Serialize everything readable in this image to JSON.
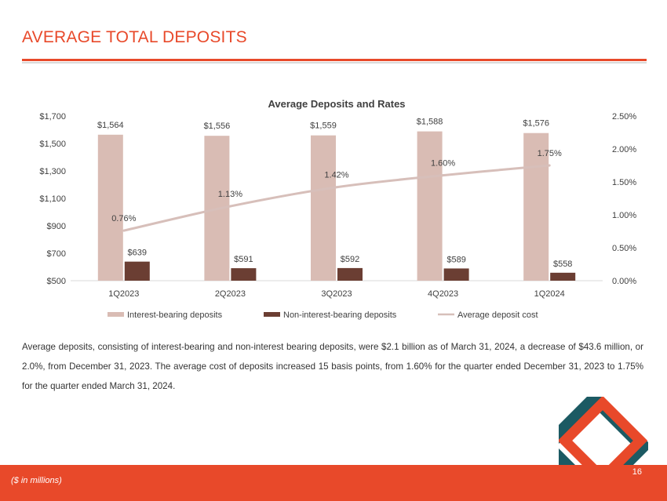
{
  "page": {
    "title": "AVERAGE TOTAL DEPOSITS",
    "body_text": "Average deposits, consisting of interest-bearing and non-interest bearing deposits, were $2.1 billion as of March 31, 2024, a decrease of $43.6 million, or 2.0%, from December 31, 2023. The average cost of deposits increased 15 basis points, from 1.60% for the quarter ended December 31, 2023 to 1.75% for the quarter ended March 31, 2024.",
    "footnote": "($ in millions)",
    "page_number": "16"
  },
  "colors": {
    "accent": "#e8492a",
    "interest_bar": "#d9bcb4",
    "noninterest_bar": "#6b3e33",
    "line": "#d7bfba",
    "logo_teal": "#1c5a63"
  },
  "chart_data": {
    "type": "bar",
    "title": "Average Deposits and Rates",
    "categories": [
      "1Q2023",
      "2Q2023",
      "3Q2023",
      "4Q2023",
      "1Q2024"
    ],
    "series": [
      {
        "name": "Interest-bearing deposits",
        "kind": "bar",
        "axis": "left",
        "values": [
          1564,
          1556,
          1559,
          1588,
          1576
        ],
        "labels": [
          "$1,564",
          "$1,556",
          "$1,559",
          "$1,588",
          "$1,576"
        ]
      },
      {
        "name": "Non-interest-bearing deposits",
        "kind": "bar",
        "axis": "left",
        "values": [
          639,
          591,
          592,
          589,
          558
        ],
        "labels": [
          "$639",
          "$591",
          "$592",
          "$589",
          "$558"
        ]
      },
      {
        "name": "Average deposit cost",
        "kind": "line",
        "axis": "right",
        "values": [
          0.76,
          1.13,
          1.42,
          1.6,
          1.75
        ],
        "labels": [
          "0.76%",
          "1.13%",
          "1.42%",
          "1.60%",
          "1.75%"
        ]
      }
    ],
    "ylim": [
      500,
      1700
    ],
    "yticks": [
      "$500",
      "$700",
      "$900",
      "$1,100",
      "$1,300",
      "$1,500",
      "$1,700"
    ],
    "y2lim": [
      0,
      2.5
    ],
    "y2ticks": [
      "0.00%",
      "0.50%",
      "1.00%",
      "1.50%",
      "2.00%",
      "2.50%"
    ],
    "xlabel": "",
    "ylabel": "",
    "grid": false,
    "legend_position": "bottom"
  }
}
